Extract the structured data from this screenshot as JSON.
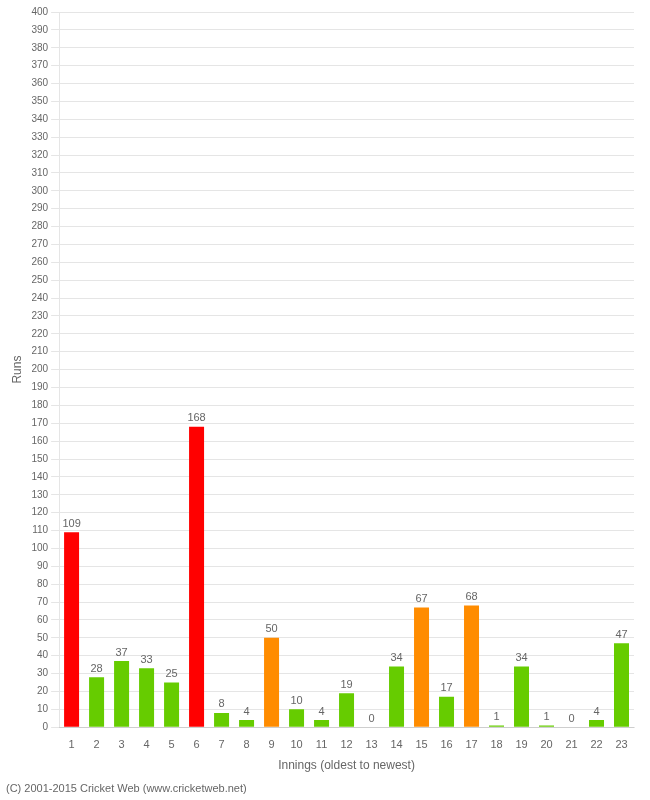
{
  "chart_data": {
    "type": "bar",
    "xlabel": "Innings (oldest to newest)",
    "ylabel": "Runs",
    "annotations": [
      "(C) 2001-2015 Cricket Web (www.cricketweb.net)"
    ],
    "categories": [
      "1",
      "2",
      "3",
      "4",
      "5",
      "6",
      "7",
      "8",
      "9",
      "10",
      "11",
      "12",
      "13",
      "14",
      "15",
      "16",
      "17",
      "18",
      "19",
      "20",
      "21",
      "22",
      "23"
    ],
    "values": [
      109,
      28,
      37,
      33,
      25,
      168,
      8,
      4,
      50,
      10,
      4,
      19,
      0,
      34,
      67,
      17,
      68,
      1,
      34,
      1,
      0,
      4,
      47
    ],
    "colors": [
      "#ff0000",
      "#66cc00",
      "#66cc00",
      "#66cc00",
      "#66cc00",
      "#ff0000",
      "#66cc00",
      "#66cc00",
      "#ff8c00",
      "#66cc00",
      "#66cc00",
      "#66cc00",
      "#66cc00",
      "#66cc00",
      "#ff8c00",
      "#66cc00",
      "#ff8c00",
      "#66cc00",
      "#66cc00",
      "#66cc00",
      "#66cc00",
      "#66cc00",
      "#66cc00"
    ],
    "ylim": [
      0,
      400
    ],
    "yticks": [
      0,
      10,
      20,
      30,
      40,
      50,
      60,
      70,
      80,
      90,
      100,
      110,
      120,
      130,
      140,
      150,
      160,
      170,
      180,
      190,
      200,
      210,
      220,
      230,
      240,
      250,
      260,
      270,
      280,
      290,
      300,
      310,
      320,
      330,
      340,
      350,
      360,
      370,
      380,
      390,
      400
    ],
    "grid": true,
    "data_labels": true
  }
}
